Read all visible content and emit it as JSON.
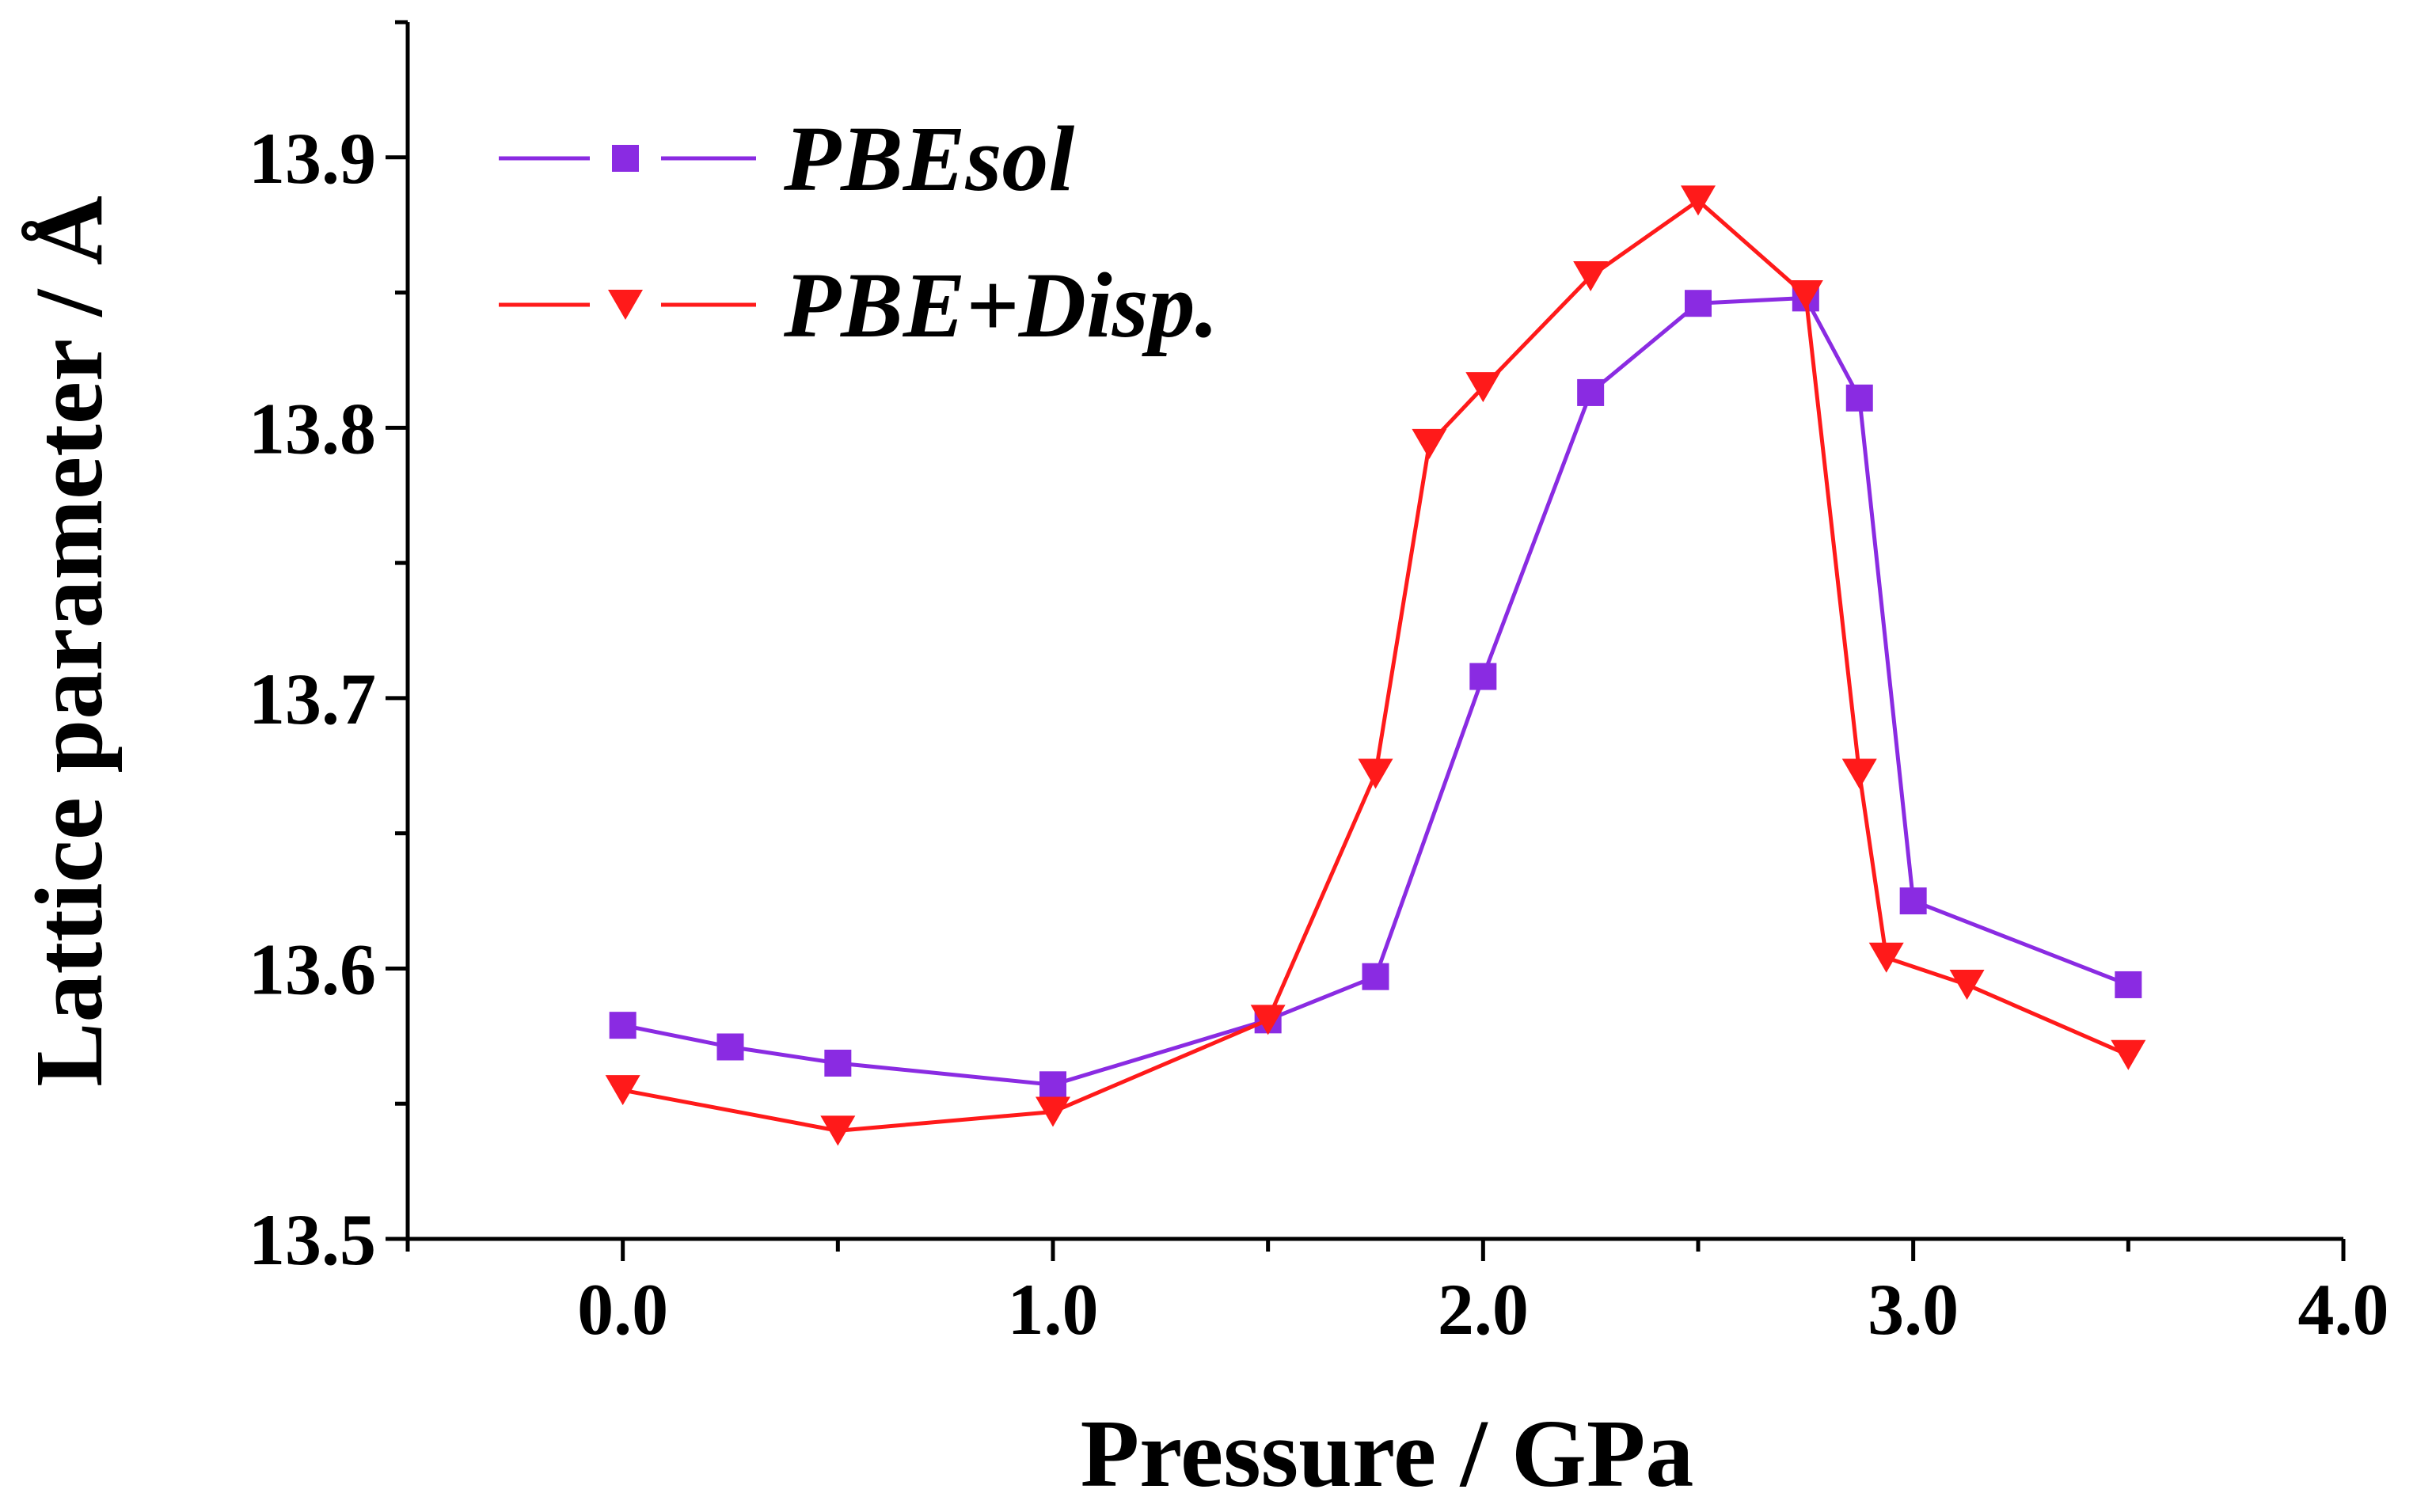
{
  "chart_data": {
    "type": "line",
    "title": "",
    "xlabel": "Pressure / GPa",
    "ylabel": "Lattice parameter / Å",
    "xlim": [
      -0.5,
      4.0
    ],
    "ylim": [
      13.5,
      13.95
    ],
    "xticks": [
      0.0,
      1.0,
      2.0,
      3.0,
      4.0
    ],
    "xtick_labels": [
      "0.0",
      "1.0",
      "2.0",
      "3.0",
      "4.0"
    ],
    "xminor": [
      -0.5,
      0.5,
      1.5,
      2.5,
      3.5
    ],
    "yticks": [
      13.5,
      13.6,
      13.7,
      13.8,
      13.9
    ],
    "ytick_labels": [
      "13.5",
      "13.6",
      "13.7",
      "13.8",
      "13.9"
    ],
    "yminor": [
      13.55,
      13.65,
      13.75,
      13.85,
      13.95
    ],
    "grid": false,
    "legend_position": "top-left",
    "series": [
      {
        "name": "PBEsol",
        "color": "#8a2be2",
        "marker": "square",
        "x": [
          0.0,
          0.25,
          0.5,
          1.0,
          1.5,
          1.75,
          2.0,
          2.25,
          2.5,
          2.75,
          2.875,
          3.0,
          3.5
        ],
        "y": [
          13.579,
          13.571,
          13.565,
          13.557,
          13.581,
          13.597,
          13.708,
          13.813,
          13.846,
          13.848,
          13.811,
          13.625,
          13.594
        ]
      },
      {
        "name": "PBE+Disp.",
        "color": "#ff1a1a",
        "marker": "triangle-down",
        "x": [
          0.0,
          0.5,
          1.0,
          1.5,
          1.75,
          1.875,
          2.0,
          2.25,
          2.5,
          2.75,
          2.875,
          2.9375,
          3.125,
          3.5
        ],
        "y": [
          13.555,
          13.54,
          13.547,
          13.581,
          13.672,
          13.794,
          13.815,
          13.856,
          13.884,
          13.849,
          13.672,
          13.604,
          13.594,
          13.568
        ]
      }
    ]
  }
}
